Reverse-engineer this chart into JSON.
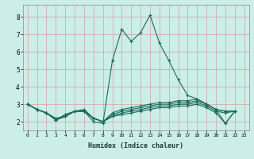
{
  "xlabel": "Humidex (Indice chaleur)",
  "bg_color": "#cceee8",
  "plot_bg_color": "#cceee8",
  "grid_color": "#d4a0a0",
  "line_color": "#1a6b5a",
  "xlim": [
    -0.5,
    23.5
  ],
  "ylim": [
    1.5,
    8.7
  ],
  "xticks": [
    0,
    1,
    2,
    3,
    4,
    5,
    6,
    7,
    8,
    9,
    10,
    11,
    12,
    13,
    14,
    15,
    16,
    17,
    18,
    19,
    20,
    21,
    22,
    23
  ],
  "yticks": [
    2,
    3,
    4,
    5,
    6,
    7,
    8
  ],
  "series": [
    [
      3.0,
      2.7,
      2.5,
      2.1,
      2.4,
      2.6,
      2.6,
      2.0,
      1.9,
      5.5,
      7.3,
      6.6,
      7.1,
      8.1,
      6.5,
      5.5,
      4.4,
      3.5,
      3.3,
      3.0,
      2.7,
      1.9,
      2.6
    ],
    [
      3.0,
      2.7,
      2.5,
      2.2,
      2.3,
      2.6,
      2.7,
      2.2,
      2.0,
      2.5,
      2.7,
      2.8,
      2.9,
      3.0,
      3.1,
      3.1,
      3.2,
      3.2,
      3.3,
      3.0,
      2.7,
      2.6,
      2.6
    ],
    [
      3.0,
      2.7,
      2.5,
      2.1,
      2.4,
      2.6,
      2.6,
      2.2,
      2.0,
      2.4,
      2.6,
      2.7,
      2.8,
      2.9,
      3.0,
      3.0,
      3.1,
      3.1,
      3.2,
      3.0,
      2.7,
      2.6,
      2.6
    ],
    [
      3.0,
      2.7,
      2.5,
      2.1,
      2.3,
      2.6,
      2.6,
      2.2,
      2.0,
      2.3,
      2.5,
      2.6,
      2.7,
      2.8,
      2.9,
      2.9,
      3.0,
      3.0,
      3.1,
      2.9,
      2.6,
      2.5,
      2.6
    ],
    [
      3.0,
      2.7,
      2.5,
      2.1,
      2.3,
      2.6,
      2.6,
      2.2,
      2.0,
      2.3,
      2.4,
      2.5,
      2.6,
      2.7,
      2.8,
      2.8,
      2.9,
      2.9,
      3.0,
      2.8,
      2.5,
      1.9,
      2.6
    ]
  ]
}
